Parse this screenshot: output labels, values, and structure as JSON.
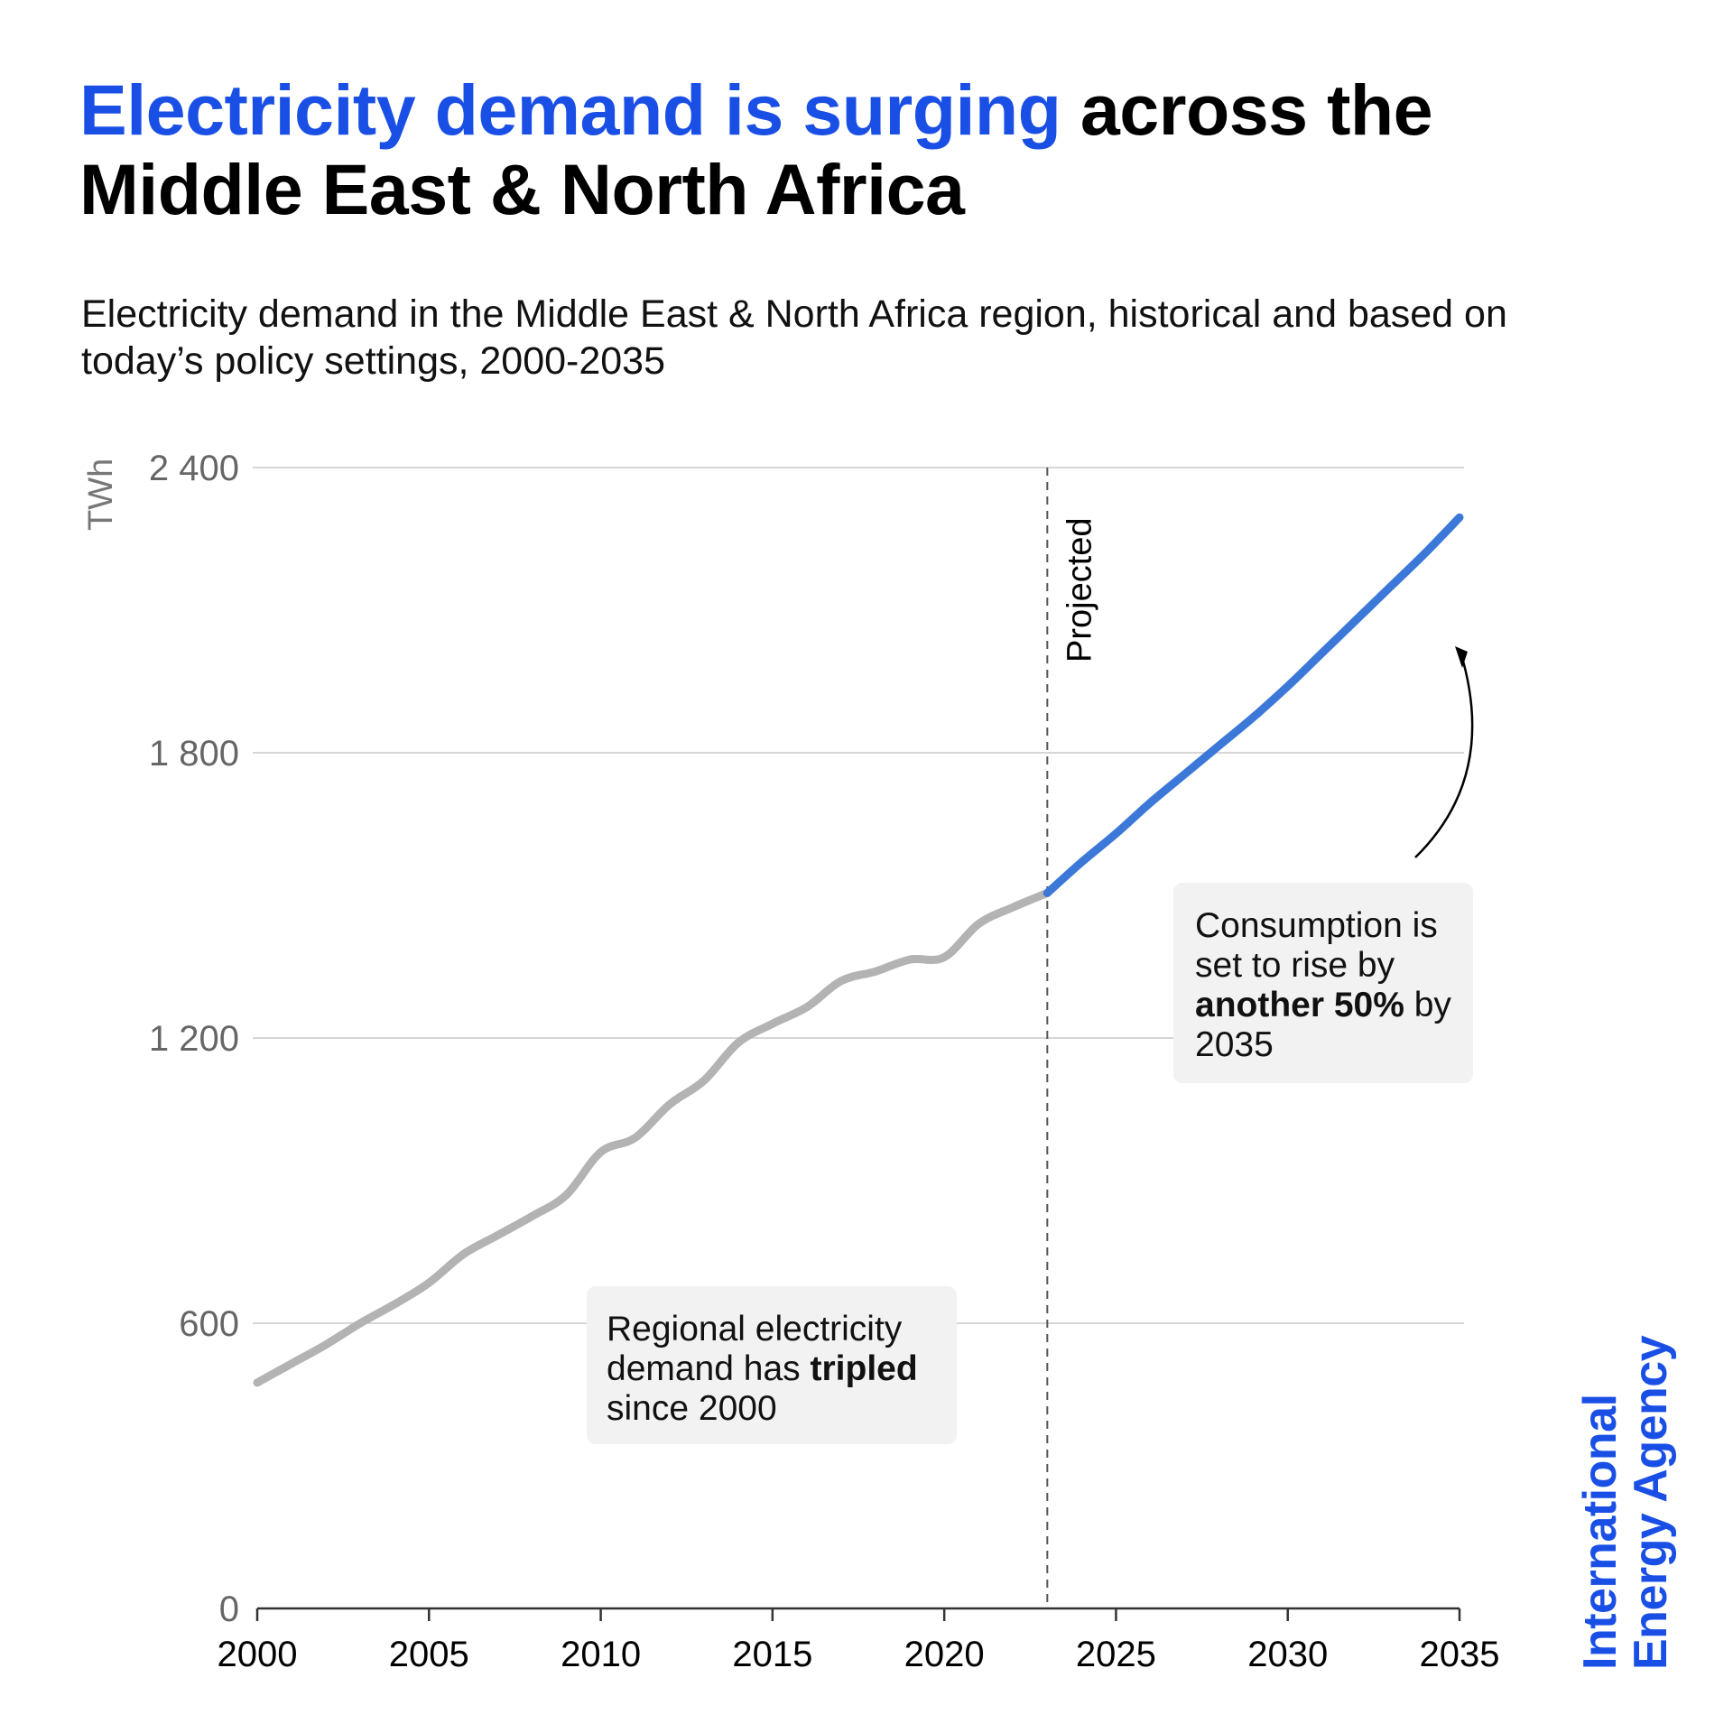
{
  "headline": {
    "highlight": "Electricity demand is surging",
    "rest": " across the Middle East & North Africa"
  },
  "subtitle": "Electricity demand in the Middle East & North Africa region, historical and based on today’s policy settings, 2000-2035",
  "chart_data": {
    "type": "line",
    "ylabel": "TWh",
    "ylim": [
      0,
      2400
    ],
    "xlim": [
      2000,
      2035
    ],
    "grid": true,
    "y_ticks": [
      {
        "value": 0,
        "label": "0"
      },
      {
        "value": 600,
        "label": "600"
      },
      {
        "value": 1200,
        "label": "1 200"
      },
      {
        "value": 1800,
        "label": "1 800"
      },
      {
        "value": 2400,
        "label": "2 400"
      }
    ],
    "x_ticks": [
      {
        "value": 2000,
        "label": "2000"
      },
      {
        "value": 2005,
        "label": "2005"
      },
      {
        "value": 2010,
        "label": "2010"
      },
      {
        "value": 2015,
        "label": "2015"
      },
      {
        "value": 2020,
        "label": "2020"
      },
      {
        "value": 2025,
        "label": "2025"
      },
      {
        "value": 2030,
        "label": "2030"
      },
      {
        "value": 2035,
        "label": "2035"
      }
    ],
    "projection_marker": {
      "x": 2023,
      "label": "Projected"
    },
    "series": [
      {
        "color": "#b3b3b3",
        "x": [
          2000,
          2001,
          2002,
          2003,
          2004,
          2005,
          2006,
          2007,
          2008,
          2009,
          2010,
          2011,
          2012,
          2013,
          2014,
          2015,
          2016,
          2017,
          2018,
          2019,
          2020,
          2021,
          2022,
          2023
        ],
        "y": [
          475,
          515,
          555,
          600,
          640,
          685,
          745,
          785,
          825,
          870,
          960,
          990,
          1060,
          1110,
          1190,
          1230,
          1265,
          1320,
          1340,
          1365,
          1370,
          1440,
          1475,
          1505
        ]
      },
      {
        "color": "#3b78d8",
        "x": [
          2023,
          2024,
          2025,
          2026,
          2027,
          2028,
          2029,
          2030,
          2031,
          2032,
          2033,
          2034,
          2035
        ],
        "y": [
          1505,
          1570,
          1630,
          1695,
          1755,
          1815,
          1875,
          1940,
          2010,
          2080,
          2150,
          2220,
          2295
        ]
      }
    ],
    "annotations": [
      {
        "before": "Regional electricity demand has ",
        "bold": "tripled",
        "after": " since 2000"
      },
      {
        "before": "Consumption is set to rise by ",
        "bold": "another 50%",
        "after": " by 2035"
      }
    ]
  },
  "logo": {
    "line1": "International",
    "line2": "Energy Agency"
  }
}
